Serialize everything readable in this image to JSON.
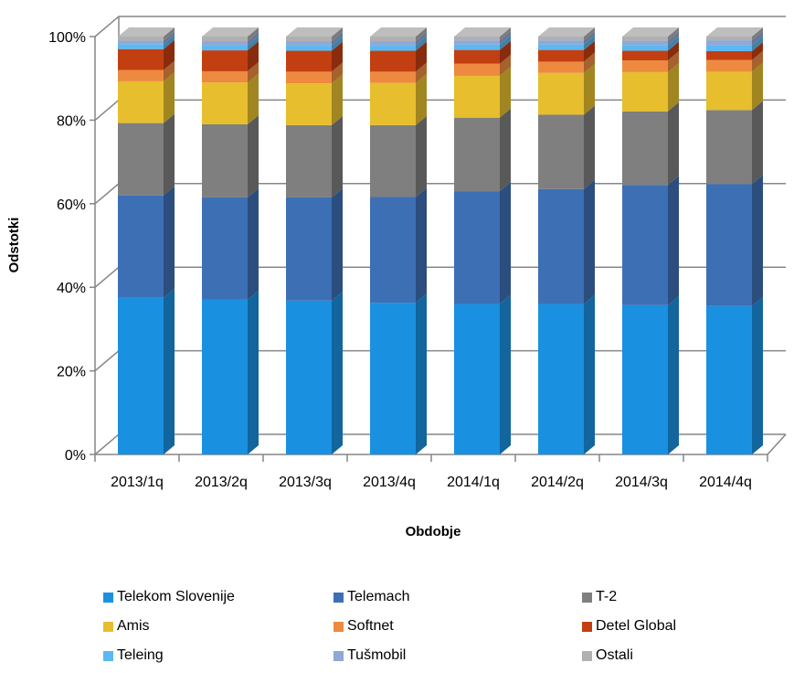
{
  "chart_data": {
    "type": "bar",
    "stacked": true,
    "percent": true,
    "three_d": true,
    "title": "",
    "xlabel": "Obdobje",
    "ylabel": "Odstotki",
    "ylim": [
      0,
      100
    ],
    "y_ticks": [
      "0%",
      "20%",
      "40%",
      "60%",
      "80%",
      "100%"
    ],
    "grid": true,
    "legend_position": "bottom",
    "categories": [
      "2013/1q",
      "2013/2q",
      "2013/3q",
      "2013/4q",
      "2014/1q",
      "2014/2q",
      "2014/3q",
      "2014/4q"
    ],
    "series": [
      {
        "name": "Telekom Slovenije",
        "color": "#1a90e0",
        "values": [
          37.5,
          37.0,
          36.8,
          36.3,
          36.0,
          36.0,
          35.7,
          35.5
        ]
      },
      {
        "name": "Telemach",
        "color": "#3d6fb5",
        "values": [
          24.5,
          24.5,
          24.7,
          25.3,
          27.0,
          27.5,
          28.8,
          29.2
        ]
      },
      {
        "name": "T-2",
        "color": "#7f7f7f",
        "values": [
          17.3,
          17.5,
          17.3,
          17.2,
          17.6,
          17.8,
          17.6,
          17.7
        ]
      },
      {
        "name": "Amis",
        "color": "#e6be2e",
        "values": [
          10.0,
          10.0,
          10.0,
          10.1,
          10.0,
          10.0,
          9.4,
          9.2
        ]
      },
      {
        "name": "Softnet",
        "color": "#ed8a3f",
        "values": [
          2.7,
          2.7,
          2.8,
          2.7,
          2.9,
          2.7,
          2.8,
          2.8
        ]
      },
      {
        "name": "Detel Global",
        "color": "#c23f12",
        "values": [
          5.0,
          5.0,
          5.0,
          5.0,
          3.3,
          2.8,
          2.3,
          2.1
        ]
      },
      {
        "name": "Teleing",
        "color": "#5bb8f0",
        "values": [
          1.2,
          1.2,
          1.3,
          1.3,
          1.3,
          1.3,
          1.4,
          1.4
        ]
      },
      {
        "name": "Tušmobil",
        "color": "#8fa8d6",
        "values": [
          0.8,
          1.0,
          1.0,
          1.0,
          1.0,
          1.0,
          1.0,
          1.2
        ]
      },
      {
        "name": "Ostali",
        "color": "#b0b0b0",
        "values": [
          1.0,
          1.1,
          1.1,
          1.1,
          0.9,
          0.9,
          1.0,
          0.9
        ]
      }
    ]
  }
}
